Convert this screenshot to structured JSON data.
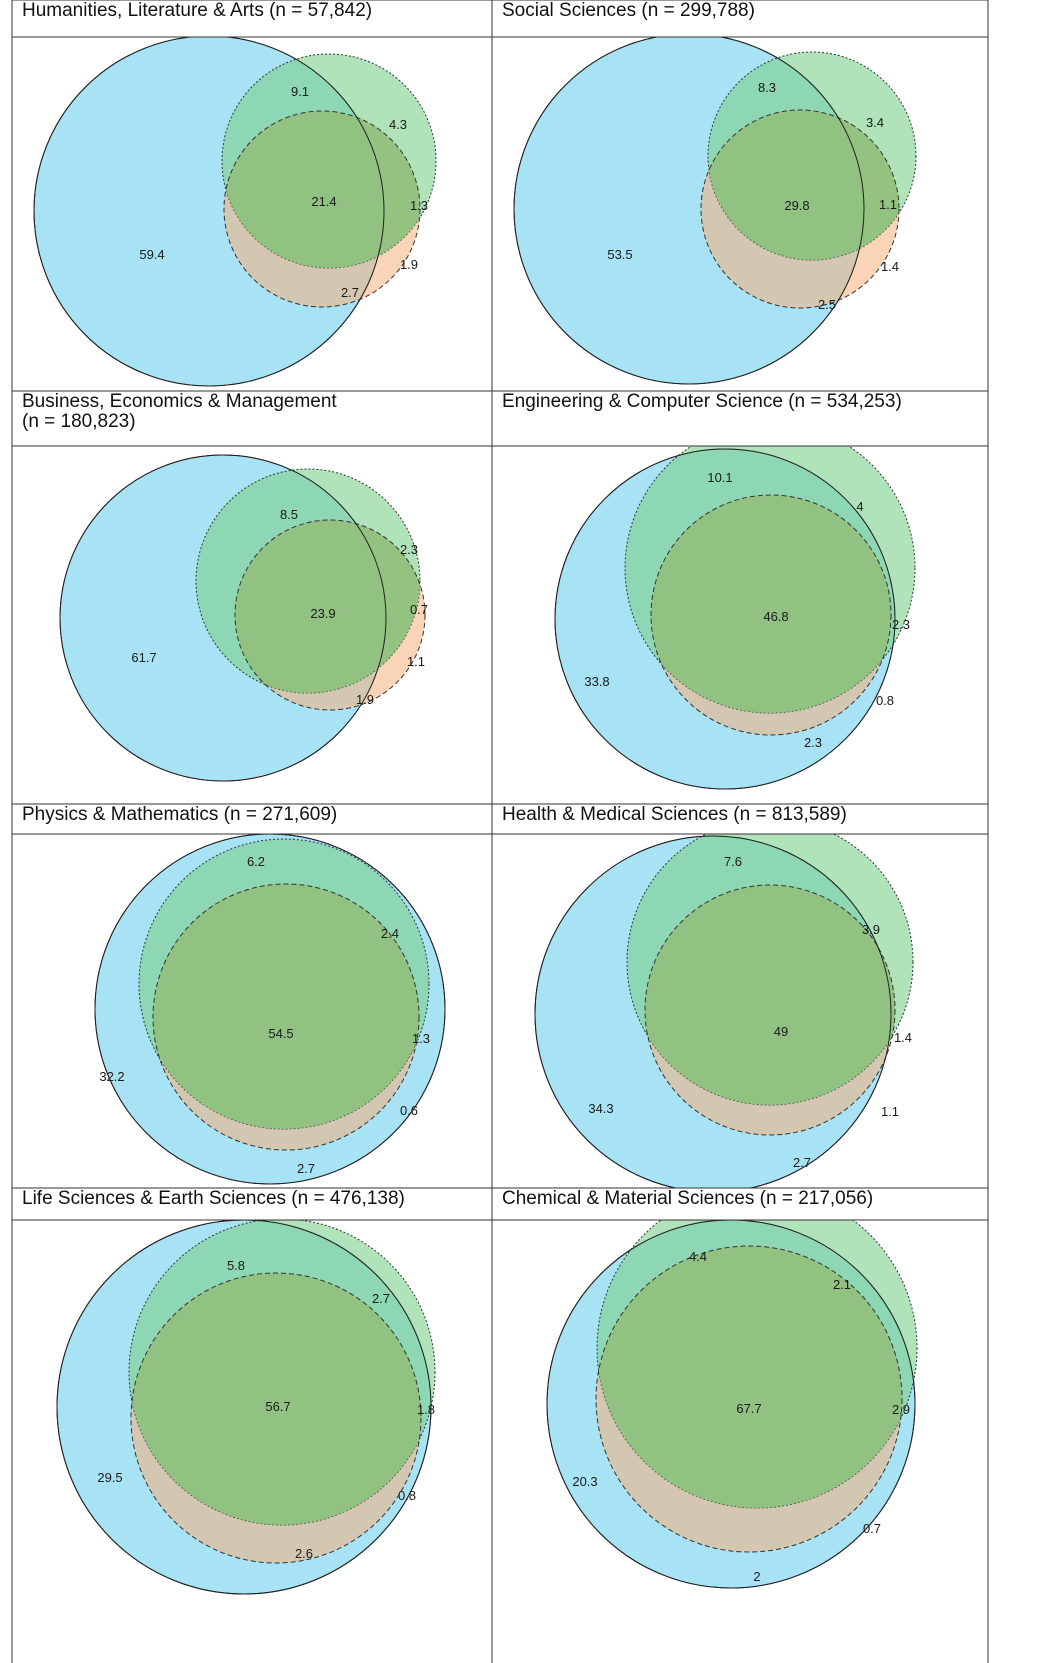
{
  "chart_data": {
    "type": "venn",
    "circle_colors": {
      "blue": "#a8e2f5",
      "green": "#7bd08a",
      "orange": "#f6b07a",
      "center": "#8fbf7c"
    },
    "panels": [
      {
        "title": "Humanities, Literature & Arts (n = 57,842)",
        "circles": {
          "blue": 0.962,
          "green": 0.391,
          "orange": 0.294
        },
        "regions": {
          "blue_only": "59.4",
          "blue_green": "9.1",
          "green_only": "4.3",
          "all_three": "21.4",
          "green_orange": "1.3",
          "orange_only": "1.9",
          "blue_orange": "2.7"
        }
      },
      {
        "title": "Social Sciences (n = 299,788)",
        "circles": {
          "blue": 0.962,
          "green": 0.457,
          "orange": 0.371
        },
        "regions": {
          "blue_only": "53.5",
          "blue_green": "8.3",
          "green_only": "3.4",
          "all_three": "29.8",
          "green_orange": "1.1",
          "orange_only": "1.4",
          "blue_orange": "2.5"
        }
      },
      {
        "title": "Business, Economics & Management\n(n = 180,823)",
        "circles": {
          "blue": 0.968,
          "green": 0.364,
          "orange": 0.284
        },
        "regions": {
          "blue_only": "61.7",
          "blue_green": "8.5",
          "green_only": "2.3",
          "all_three": "23.9",
          "green_orange": "0.7",
          "orange_only": "1.1",
          "blue_orange": "1.9"
        }
      },
      {
        "title": "Engineering & Computer Science (n = 534,253)",
        "circles": {
          "blue": 0.931,
          "green": 0.652,
          "orange": 0.566
        },
        "regions": {
          "blue_only": "33.8",
          "blue_green": "10.1",
          "green_only": "4",
          "all_three": "46.8",
          "green_orange": "2.3",
          "orange_only": "0.8",
          "blue_orange": "2.3"
        }
      },
      {
        "title": "Physics & Mathematics (n = 271,609)",
        "circles": {
          "blue": 0.966,
          "green": 0.665,
          "orange": 0.632
        },
        "regions": {
          "blue_only": "32.2",
          "blue_green": "6.2",
          "green_only": "2.4",
          "all_three": "54.5",
          "green_orange": "1.3",
          "orange_only": "0.6",
          "blue_orange": "2.7"
        }
      },
      {
        "title": "Health & Medical Sciences (n = 813,589)",
        "circles": {
          "blue": 0.937,
          "green": 0.631,
          "orange": 0.563
        },
        "regions": {
          "blue_only": "34.3",
          "blue_green": "7.6",
          "green_only": "3.9",
          "all_three": "49",
          "green_orange": "1.4",
          "orange_only": "1.1",
          "blue_orange": "2.7"
        }
      },
      {
        "title": "Life Sciences & Earth Sciences (n = 476,138)",
        "circles": {
          "blue": 0.96,
          "green": 0.678,
          "orange": 0.641
        },
        "regions": {
          "blue_only": "29.5",
          "blue_green": "5.8",
          "green_only": "2.7",
          "all_three": "56.7",
          "green_orange": "1.8",
          "orange_only": "0.8",
          "blue_orange": "2.6"
        }
      },
      {
        "title": "Chemical & Material Sciences (n = 217,056)",
        "circles": {
          "blue": 0.957,
          "green": 0.781,
          "orange": 0.732
        },
        "regions": {
          "blue_only": "20.3",
          "blue_green": "4.4",
          "green_only": "2.1",
          "all_three": "67.7",
          "green_orange": "2.9",
          "orange_only": "0.7",
          "blue_orange": "2"
        }
      }
    ]
  }
}
